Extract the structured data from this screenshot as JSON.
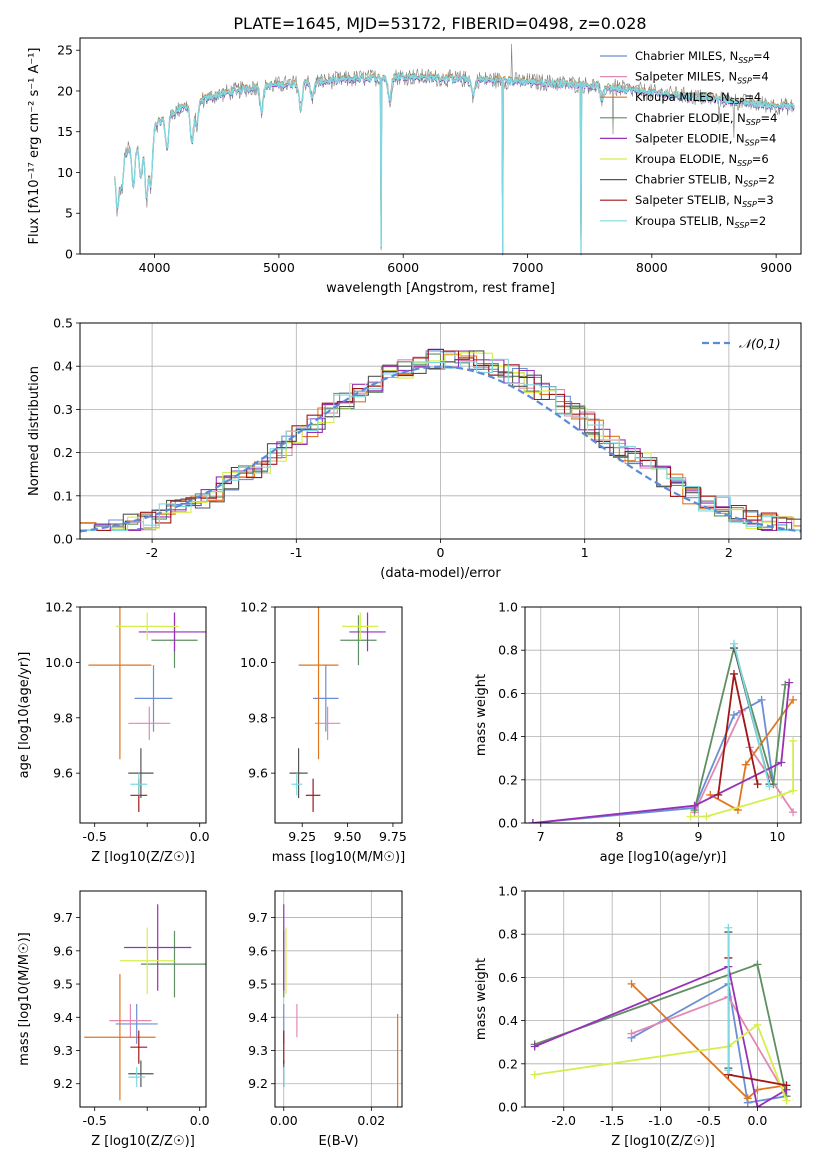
{
  "figure_title": "PLATE=1645, MJD=53172, FIBERID=0498, z=0.028",
  "legend": [
    {
      "label": "Chabrier MILES, N",
      "sub": "SSP",
      "tail": "=4",
      "color": "#6a8fd6"
    },
    {
      "label": "Salpeter MILES, N",
      "sub": "SSP",
      "tail": "=4",
      "color": "#e388b3"
    },
    {
      "label": "Kroupa MILES, N",
      "sub": "SSP",
      "tail": "=4",
      "color": "#e0761f"
    },
    {
      "label": "Chabrier ELODIE, N",
      "sub": "SSP",
      "tail": "=4",
      "color": "#5f8f63"
    },
    {
      "label": "Salpeter ELODIE, N",
      "sub": "SSP",
      "tail": "=4",
      "color": "#9632b6"
    },
    {
      "label": "Kroupa ELODIE, N",
      "sub": "SSP",
      "tail": "=6",
      "color": "#d6ee4d"
    },
    {
      "label": "Chabrier STELIB, N",
      "sub": "SSP",
      "tail": "=2",
      "color": "#555555"
    },
    {
      "label": "Salpeter STELIB, N",
      "sub": "SSP",
      "tail": "=3",
      "color": "#a01818"
    },
    {
      "label": "Kroupa STELIB, N",
      "sub": "SSP",
      "tail": "=2",
      "color": "#7fd9e0"
    }
  ],
  "chart_data": [
    {
      "id": "spectrum",
      "type": "line",
      "xlabel": "wavelength [Angstrom, rest frame]",
      "ylabel": "Flux [fλ10⁻¹⁷ erg cm⁻² s⁻¹ A⁻¹]",
      "xlim": [
        3400,
        9200
      ],
      "ylim": [
        0,
        26.5
      ],
      "xticks": [
        4000,
        5000,
        6000,
        7000,
        8000,
        9000
      ],
      "yticks": [
        0,
        5,
        10,
        15,
        20,
        25
      ],
      "data_color": "#7f7f7f",
      "continuum": {
        "x": [
          3680,
          3800,
          3950,
          4100,
          4300,
          4500,
          4800,
          5200,
          5600,
          6000,
          6400,
          6800,
          7200,
          7600,
          8000,
          8400,
          8800,
          9150
        ],
        "y": [
          11,
          13,
          15,
          17,
          18.5,
          19.5,
          20.5,
          21,
          21.5,
          21.8,
          21.5,
          21.3,
          21,
          20.6,
          19.8,
          19.2,
          18.5,
          18
        ]
      }
    },
    {
      "id": "residuals",
      "type": "step",
      "xlabel": "(data-model)/error",
      "ylabel": "Normed distribution",
      "xlim": [
        -2.5,
        2.5
      ],
      "ylim": [
        0,
        0.5
      ],
      "xticks": [
        -2,
        -1,
        0,
        1,
        2
      ],
      "yticks": [
        0.0,
        0.1,
        0.2,
        0.3,
        0.4,
        0.5
      ],
      "reference_label": "𝒩(0,1)",
      "reference_color": "#5b8ad6"
    },
    {
      "id": "age_vs_Z",
      "type": "errorbar",
      "xlabel": "Z [log10(Z/Z☉)]",
      "ylabel": "age  [log10(age/yr)]",
      "xlim": [
        -0.57,
        0.03
      ],
      "ylim": [
        9.42,
        10.2
      ],
      "xticks": [
        -0.5,
        -0.25,
        0.0
      ],
      "yticks": [
        9.6,
        9.8,
        10.0,
        10.2
      ],
      "points": [
        {
          "x": -0.22,
          "y": 9.87,
          "xerr": 0.09,
          "yerr": 0.12,
          "color": "#6a8fd6"
        },
        {
          "x": -0.24,
          "y": 9.78,
          "xerr": 0.1,
          "yerr": 0.06,
          "color": "#e388b3"
        },
        {
          "x": -0.38,
          "y": 9.99,
          "xerr": 0.15,
          "yerr": 0.34,
          "color": "#e0761f"
        },
        {
          "x": -0.12,
          "y": 10.08,
          "xerr": 0.11,
          "yerr": 0.1,
          "color": "#5f8f63"
        },
        {
          "x": -0.12,
          "y": 10.11,
          "xerr": 0.17,
          "yerr": 0.07,
          "color": "#9632b6"
        },
        {
          "x": -0.25,
          "y": 10.13,
          "xerr": 0.15,
          "yerr": 0.05,
          "color": "#d6ee4d"
        },
        {
          "x": -0.28,
          "y": 9.6,
          "xerr": 0.06,
          "yerr": 0.09,
          "color": "#555555"
        },
        {
          "x": -0.29,
          "y": 9.52,
          "xerr": 0.04,
          "yerr": 0.06,
          "color": "#a01818"
        },
        {
          "x": -0.29,
          "y": 9.56,
          "xerr": 0.04,
          "yerr": 0.04,
          "color": "#7fd9e0"
        }
      ]
    },
    {
      "id": "age_vs_mass",
      "type": "errorbar",
      "xlabel": "mass [log10(M/M☉)]",
      "ylabel": "",
      "xlim": [
        9.1,
        9.8
      ],
      "ylim": [
        9.42,
        10.2
      ],
      "xticks": [
        9.25,
        9.5,
        9.75
      ],
      "yticks": [
        9.6,
        9.8,
        10.0,
        10.2
      ],
      "points": [
        {
          "x": 9.38,
          "y": 9.87,
          "xerr": 0.07,
          "yerr": 0.12,
          "color": "#6a8fd6"
        },
        {
          "x": 9.39,
          "y": 9.78,
          "xerr": 0.07,
          "yerr": 0.06,
          "color": "#e388b3"
        },
        {
          "x": 9.34,
          "y": 9.99,
          "xerr": 0.11,
          "yerr": 0.34,
          "color": "#e0761f"
        },
        {
          "x": 9.56,
          "y": 10.08,
          "xerr": 0.1,
          "yerr": 0.09,
          "color": "#5f8f63"
        },
        {
          "x": 9.61,
          "y": 10.11,
          "xerr": 0.1,
          "yerr": 0.07,
          "color": "#9632b6"
        },
        {
          "x": 9.57,
          "y": 10.13,
          "xerr": 0.1,
          "yerr": 0.05,
          "color": "#d6ee4d"
        },
        {
          "x": 9.23,
          "y": 9.6,
          "xerr": 0.05,
          "yerr": 0.09,
          "color": "#555555"
        },
        {
          "x": 9.31,
          "y": 9.52,
          "xerr": 0.04,
          "yerr": 0.06,
          "color": "#a01818"
        },
        {
          "x": 9.22,
          "y": 9.56,
          "xerr": 0.03,
          "yerr": 0.04,
          "color": "#7fd9e0"
        }
      ]
    },
    {
      "id": "mass_weight_vs_age",
      "type": "line",
      "xlabel": "age  [log10(age/yr)]",
      "ylabel": "mass weight",
      "xlim": [
        6.8,
        10.3
      ],
      "ylim": [
        0,
        1.0
      ],
      "xticks": [
        7,
        8,
        9,
        10
      ],
      "yticks": [
        0.0,
        0.2,
        0.4,
        0.6,
        0.8,
        1.0
      ],
      "series": [
        {
          "color": "#6a8fd6",
          "x": [
            6.9,
            8.95,
            9.45,
            9.8,
            9.95
          ],
          "y": [
            0.0,
            0.07,
            0.5,
            0.57,
            0.18
          ]
        },
        {
          "color": "#e388b3",
          "x": [
            8.95,
            9.55,
            9.65,
            10.2
          ],
          "y": [
            0.05,
            0.52,
            0.35,
            0.05
          ]
        },
        {
          "color": "#e0761f",
          "x": [
            9.15,
            9.5,
            9.6,
            10.2
          ],
          "y": [
            0.13,
            0.06,
            0.27,
            0.57
          ]
        },
        {
          "color": "#5f8f63",
          "x": [
            8.95,
            9.45,
            9.95,
            10.1
          ],
          "y": [
            0.06,
            0.81,
            0.18,
            0.64
          ]
        },
        {
          "color": "#9632b6",
          "x": [
            6.9,
            8.95,
            10.05,
            10.15
          ],
          "y": [
            0.0,
            0.08,
            0.28,
            0.65
          ]
        },
        {
          "color": "#d6ee4d",
          "x": [
            8.9,
            9.1,
            10.05,
            10.2,
            10.2
          ],
          "y": [
            0.03,
            0.03,
            0.13,
            0.15,
            0.38
          ]
        },
        {
          "color": "#555555",
          "x": [
            9.45,
            9.9
          ],
          "y": [
            0.81,
            0.18
          ]
        },
        {
          "color": "#a01818",
          "x": [
            9.25,
            9.45,
            9.75
          ],
          "y": [
            0.13,
            0.69,
            0.18
          ]
        },
        {
          "color": "#7fd9e0",
          "x": [
            9.45,
            9.9
          ],
          "y": [
            0.83,
            0.17
          ]
        }
      ]
    },
    {
      "id": "mass_vs_Z",
      "type": "errorbar",
      "xlabel": "Z [log10(Z/Z☉)]",
      "ylabel": "mass [log10(M/M☉)]",
      "xlim": [
        -0.57,
        0.03
      ],
      "ylim": [
        9.13,
        9.78
      ],
      "xticks": [
        -0.5,
        -0.25,
        0.0
      ],
      "yticks": [
        9.2,
        9.3,
        9.4,
        9.5,
        9.6,
        9.7
      ],
      "points": [
        {
          "x": -0.3,
          "y": 9.38,
          "xerr": 0.1,
          "yerr": 0.06,
          "color": "#6a8fd6"
        },
        {
          "x": -0.33,
          "y": 9.39,
          "xerr": 0.1,
          "yerr": 0.05,
          "color": "#e388b3"
        },
        {
          "x": -0.38,
          "y": 9.34,
          "xerr": 0.17,
          "yerr": 0.19,
          "color": "#e0761f"
        },
        {
          "x": -0.12,
          "y": 9.56,
          "xerr": 0.16,
          "yerr": 0.1,
          "color": "#5f8f63"
        },
        {
          "x": -0.2,
          "y": 9.61,
          "xerr": 0.16,
          "yerr": 0.13,
          "color": "#9632b6"
        },
        {
          "x": -0.25,
          "y": 9.57,
          "xerr": 0.13,
          "yerr": 0.1,
          "color": "#d6ee4d"
        },
        {
          "x": -0.28,
          "y": 9.23,
          "xerr": 0.06,
          "yerr": 0.04,
          "color": "#555555"
        },
        {
          "x": -0.29,
          "y": 9.31,
          "xerr": 0.04,
          "yerr": 0.05,
          "color": "#a01818"
        },
        {
          "x": -0.3,
          "y": 9.22,
          "xerr": 0.04,
          "yerr": 0.03,
          "color": "#7fd9e0"
        }
      ]
    },
    {
      "id": "mass_vs_EBV",
      "type": "errorbar",
      "xlabel": "E(B-V)",
      "ylabel": "",
      "xlim": [
        -0.002,
        0.027
      ],
      "ylim": [
        9.13,
        9.78
      ],
      "xticks": [
        0.0,
        0.02
      ],
      "yticks": [
        9.2,
        9.3,
        9.4,
        9.5,
        9.6,
        9.7
      ],
      "points": [
        {
          "x": 0.0,
          "y": 9.38,
          "xerr": 0,
          "yerr": 0.06,
          "color": "#6a8fd6"
        },
        {
          "x": 0.003,
          "y": 9.39,
          "xerr": 0,
          "yerr": 0.05,
          "color": "#e388b3"
        },
        {
          "x": 0.026,
          "y": 9.26,
          "xerr": 0,
          "yerr": 0.15,
          "color": "#e0761f"
        },
        {
          "x": 0.0,
          "y": 9.56,
          "xerr": 0,
          "yerr": 0.1,
          "color": "#5f8f63"
        },
        {
          "x": 0.0,
          "y": 9.61,
          "xerr": 0,
          "yerr": 0.13,
          "color": "#9632b6"
        },
        {
          "x": 0.0005,
          "y": 9.57,
          "xerr": 0,
          "yerr": 0.1,
          "color": "#d6ee4d"
        },
        {
          "x": 0.0,
          "y": 9.23,
          "xerr": 0,
          "yerr": 0.04,
          "color": "#555555"
        },
        {
          "x": 0.0,
          "y": 9.31,
          "xerr": 0,
          "yerr": 0.05,
          "color": "#a01818"
        },
        {
          "x": 0.0,
          "y": 9.22,
          "xerr": 0,
          "yerr": 0.03,
          "color": "#7fd9e0"
        }
      ]
    },
    {
      "id": "mass_weight_vs_Z",
      "type": "line",
      "xlabel": "Z [log10(Z/Z☉)]",
      "ylabel": "mass weight",
      "xlim": [
        -2.4,
        0.45
      ],
      "ylim": [
        0,
        1.0
      ],
      "xticks": [
        -2.0,
        -1.5,
        -1.0,
        -0.5,
        0.0
      ],
      "yticks": [
        0.0,
        0.2,
        0.4,
        0.6,
        0.8,
        1.0
      ],
      "series": [
        {
          "color": "#6a8fd6",
          "x": [
            -1.3,
            -0.3,
            -0.1,
            0.3
          ],
          "y": [
            0.32,
            0.57,
            0.02,
            0.05
          ]
        },
        {
          "color": "#e388b3",
          "x": [
            -1.3,
            -0.3,
            0.3
          ],
          "y": [
            0.34,
            0.51,
            0.05
          ]
        },
        {
          "color": "#e0761f",
          "x": [
            -1.3,
            -0.1,
            0.0,
            0.3
          ],
          "y": [
            0.57,
            0.04,
            0.08,
            0.1
          ]
        },
        {
          "color": "#5f8f63",
          "x": [
            -2.3,
            0.0,
            0.3
          ],
          "y": [
            0.29,
            0.66,
            0.05
          ]
        },
        {
          "color": "#9632b6",
          "x": [
            -2.3,
            -0.3,
            0.0,
            0.3
          ],
          "y": [
            0.28,
            0.65,
            0.0,
            0.08
          ]
        },
        {
          "color": "#d6ee4d",
          "x": [
            -2.3,
            -0.3,
            0.0,
            0.3
          ],
          "y": [
            0.15,
            0.28,
            0.38,
            0.03
          ]
        },
        {
          "color": "#555555",
          "x": [
            -0.3,
            -0.3
          ],
          "y": [
            0.81,
            0.18
          ]
        },
        {
          "color": "#a01818",
          "x": [
            -0.3,
            -0.3,
            0.3
          ],
          "y": [
            0.69,
            0.15,
            0.1
          ]
        },
        {
          "color": "#7fd9e0",
          "x": [
            -0.3,
            -0.3
          ],
          "y": [
            0.83,
            0.17
          ]
        }
      ]
    }
  ]
}
